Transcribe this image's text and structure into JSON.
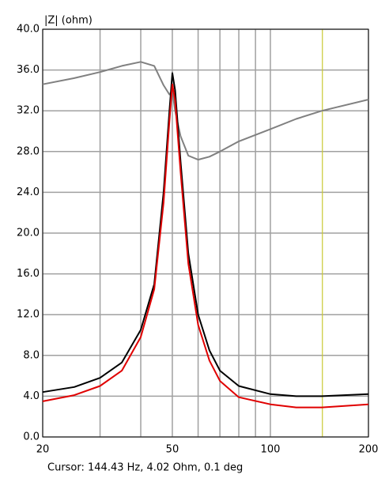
{
  "chart_data": {
    "type": "line",
    "y_label": "|Z| (ohm)",
    "cursor_text": "Cursor: 144.43 Hz, 4.02 Ohm, 0.1 deg",
    "log_x": true,
    "grid": true,
    "xlim": [
      20,
      200
    ],
    "xticks": [
      20,
      50,
      100,
      200
    ],
    "xgrid": [
      30,
      40,
      60,
      70,
      80,
      90
    ],
    "cursor_x": 144.43,
    "cursor_color": "#c8c832",
    "ylim": [
      0,
      40
    ],
    "yticks": [
      {
        "value": 0,
        "label": "0.0"
      },
      {
        "value": 4,
        "label": "4.0"
      },
      {
        "value": 8,
        "label": "8.0"
      },
      {
        "value": 12,
        "label": "12.0"
      },
      {
        "value": 16,
        "label": "16.0"
      },
      {
        "value": 20,
        "label": "20.0"
      },
      {
        "value": 24,
        "label": "24.0"
      },
      {
        "value": 28,
        "label": "28.0"
      },
      {
        "value": 32,
        "label": "32.0"
      },
      {
        "value": 36,
        "label": "36.0"
      },
      {
        "value": 40,
        "label": "40.0"
      }
    ],
    "x": [
      20,
      25,
      30,
      35,
      40,
      44,
      47,
      49,
      50,
      51,
      53,
      56,
      60,
      65,
      70,
      80,
      100,
      120,
      144,
      200
    ],
    "series": [
      {
        "color": "#808080",
        "values": [
          34.6,
          35.2,
          35.8,
          36.4,
          36.8,
          36.4,
          34.5,
          33.6,
          34.0,
          32.0,
          29.5,
          27.6,
          27.2,
          27.5,
          28.0,
          29.0,
          30.2,
          31.2,
          32.0,
          33.1
        ]
      },
      {
        "color": "#000000",
        "values": [
          4.4,
          4.9,
          5.8,
          7.3,
          10.5,
          15,
          24,
          32,
          35.7,
          34,
          27,
          18,
          12,
          8.5,
          6.5,
          5.0,
          4.2,
          4.0,
          4.0,
          4.2
        ]
      },
      {
        "color": "#e00000",
        "values": [
          3.5,
          4.1,
          5.0,
          6.5,
          9.8,
          14.5,
          23,
          31,
          34.6,
          33,
          26,
          17,
          11,
          7.5,
          5.5,
          3.9,
          3.2,
          2.9,
          2.9,
          3.2
        ]
      }
    ]
  }
}
